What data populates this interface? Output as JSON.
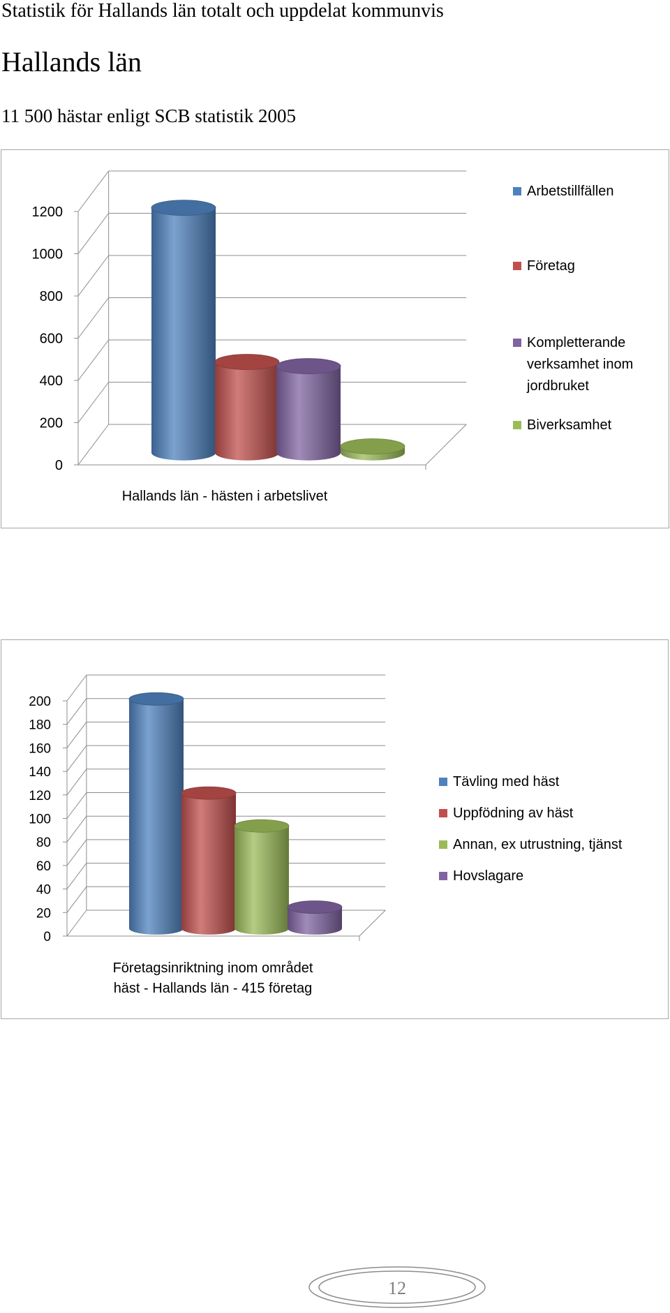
{
  "page": {
    "heading": "Statistik för Hallands län totalt och uppdelat kommunvis",
    "subheading": "Hallands län",
    "intro": "11 500 hästar enligt SCB statistik 2005",
    "page_number": "12"
  },
  "chart_data": [
    {
      "type": "bar",
      "style": "3d-cylinder",
      "title": "",
      "xlabel": "Hallands län - hästen i arbetslivet",
      "ylabel": "",
      "ylim": [
        0,
        1200
      ],
      "yticks": [
        0,
        200,
        400,
        600,
        800,
        1000,
        1200
      ],
      "grid": true,
      "legend_position": "right",
      "series": [
        {
          "name": "Arbetstillfällen",
          "values": [
            1160
          ],
          "color": "#4f81bd"
        },
        {
          "name": "Företag",
          "values": [
            430
          ],
          "color": "#c0504d"
        },
        {
          "name": "Kompletterande verksamhet inom jordbruket",
          "values": [
            410
          ],
          "color": "#8064a2"
        },
        {
          "name": "Biverksamhet",
          "values": [
            30
          ],
          "color": "#9bbb59"
        }
      ]
    },
    {
      "type": "bar",
      "style": "3d-cylinder",
      "title": "",
      "xlabel": "Företagsinriktning inom området häst - Hallands län - 415 företag",
      "ylabel": "",
      "ylim": [
        0,
        200
      ],
      "yticks": [
        0,
        20,
        40,
        60,
        80,
        100,
        120,
        140,
        160,
        180,
        200
      ],
      "grid": true,
      "legend_position": "right",
      "series": [
        {
          "name": "Tävling med häst",
          "values": [
            195
          ],
          "color": "#4f81bd"
        },
        {
          "name": "Uppfödning av häst",
          "values": [
            115
          ],
          "color": "#c0504d"
        },
        {
          "name": "Annan, ex utrustning, tjänst",
          "values": [
            87
          ],
          "color": "#9bbb59"
        },
        {
          "name": "Hovslagare",
          "values": [
            18
          ],
          "color": "#8064a2"
        }
      ]
    }
  ]
}
